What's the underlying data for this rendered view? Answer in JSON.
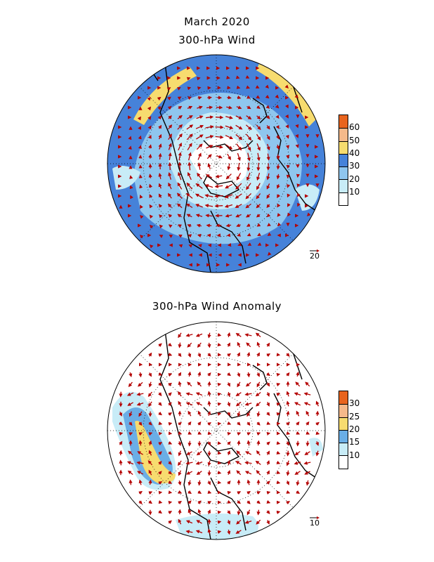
{
  "titles": {
    "main": "March 2020",
    "panel1": "300-hPa Wind",
    "panel2": "300-hPa Wind Anomaly"
  },
  "panels": [
    {
      "id": "wind",
      "colorbar": {
        "labels": [
          "60",
          "50",
          "40",
          "30",
          "20",
          "10"
        ],
        "colors": [
          "#e8641e",
          "#f5b98a",
          "#f7dc6f",
          "#4682d9",
          "#8fc6ee",
          "#c8ecf7",
          "#ffffff"
        ]
      },
      "reference_vector": "20",
      "vector_color": "#b40000"
    },
    {
      "id": "anomaly",
      "colorbar": {
        "labels": [
          "30",
          "25",
          "20",
          "15",
          "10"
        ],
        "colors": [
          "#e8641e",
          "#f5b98a",
          "#f7dc6f",
          "#6aaee6",
          "#c8ecf7",
          "#ffffff"
        ]
      },
      "reference_vector": "10",
      "vector_color": "#b40000"
    }
  ]
}
